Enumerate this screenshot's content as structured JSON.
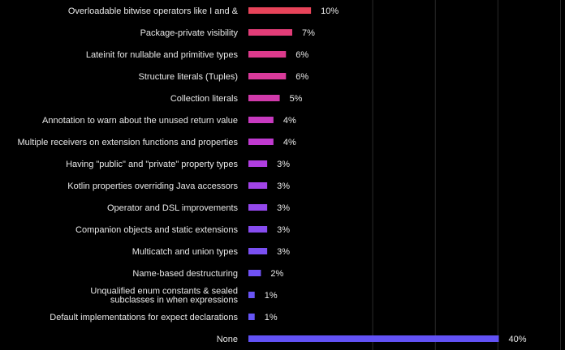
{
  "chart_data": {
    "type": "bar",
    "orientation": "horizontal",
    "value_format": "percent",
    "categories": [
      [
        "Overloadable bitwise operators like I and &"
      ],
      [
        "Package-private visibility"
      ],
      [
        "Lateinit for nullable and primitive types"
      ],
      [
        "Structure literals (Tuples)"
      ],
      [
        "Collection literals"
      ],
      [
        "Annotation to warn about the unused return value"
      ],
      [
        "Multiple receivers on extension functions and properties"
      ],
      [
        "Having \"public\" and \"private\" property types"
      ],
      [
        "Kotlin properties overriding Java accessors"
      ],
      [
        "Operator and DSL improvements"
      ],
      [
        "Companion objects and static extensions"
      ],
      [
        "Multicatch and union types"
      ],
      [
        "Name-based destructuring"
      ],
      [
        "Unqualified enum constants & sealed",
        "subclasses in when expressions"
      ],
      [
        "Default implementations for expect declarations"
      ],
      [
        "None"
      ]
    ],
    "values": [
      10,
      7,
      6,
      6,
      5,
      4,
      4,
      3,
      3,
      3,
      3,
      3,
      2,
      1,
      1,
      40
    ],
    "value_labels": [
      "10%",
      "7%",
      "6%",
      "6%",
      "5%",
      "4%",
      "4%",
      "3%",
      "3%",
      "3%",
      "3%",
      "3%",
      "2%",
      "1%",
      "1%",
      "40%"
    ],
    "colors": [
      "#e8445a",
      "#e23d78",
      "#dc3a8c",
      "#d83a9a",
      "#d03aaa",
      "#c83ac0",
      "#c03ad0",
      "#b03ee0",
      "#a244e8",
      "#9448ec",
      "#864cf0",
      "#7a50f2",
      "#7052f4",
      "#6a54f5",
      "#6655f6",
      "#6252f6"
    ],
    "xlim": [
      0,
      40
    ],
    "grid": true,
    "legend": "none"
  }
}
